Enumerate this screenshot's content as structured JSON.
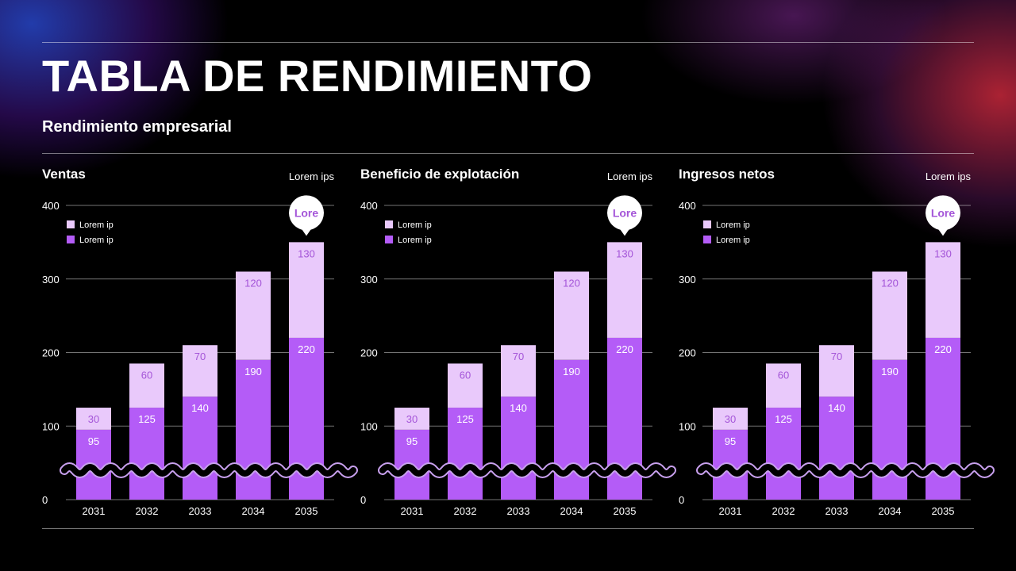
{
  "title": "TABLA DE RENDIMIENTO",
  "subtitle": "Rendimiento empresarial",
  "colors": {
    "lower": "#b45cf7",
    "upper": "#e9c9fb",
    "label_upper": "#a455d8",
    "label_lower": "#ffffff",
    "callout_text": "#a455d8"
  },
  "chart_data": [
    {
      "type": "bar",
      "title": "Ventas",
      "note": "Lorem ips",
      "callout": "Lore",
      "categories": [
        "2031",
        "2032",
        "2033",
        "2034",
        "2035"
      ],
      "yticks": [
        0,
        100,
        200,
        300,
        400
      ],
      "ylim": [
        0,
        400
      ],
      "axis_break": true,
      "series": [
        {
          "name": "Lorem ip",
          "values": [
            95,
            125,
            140,
            190,
            220
          ]
        },
        {
          "name": "Lorem ip",
          "values": [
            30,
            60,
            70,
            120,
            130
          ]
        }
      ]
    },
    {
      "type": "bar",
      "title": "Beneficio de explotación",
      "note": "Lorem ips",
      "callout": "Lore",
      "categories": [
        "2031",
        "2032",
        "2033",
        "2034",
        "2035"
      ],
      "yticks": [
        0,
        100,
        200,
        300,
        400
      ],
      "ylim": [
        0,
        400
      ],
      "axis_break": true,
      "series": [
        {
          "name": "Lorem ip",
          "values": [
            95,
            125,
            140,
            190,
            220
          ]
        },
        {
          "name": "Lorem ip",
          "values": [
            30,
            60,
            70,
            120,
            130
          ]
        }
      ]
    },
    {
      "type": "bar",
      "title": "Ingresos netos",
      "note": "Lorem ips",
      "callout": "Lore",
      "categories": [
        "2031",
        "2032",
        "2033",
        "2034",
        "2035"
      ],
      "yticks": [
        0,
        100,
        200,
        300,
        400
      ],
      "ylim": [
        0,
        400
      ],
      "axis_break": true,
      "series": [
        {
          "name": "Lorem ip",
          "values": [
            95,
            125,
            140,
            190,
            220
          ]
        },
        {
          "name": "Lorem ip",
          "values": [
            30,
            60,
            70,
            120,
            130
          ]
        }
      ]
    }
  ]
}
